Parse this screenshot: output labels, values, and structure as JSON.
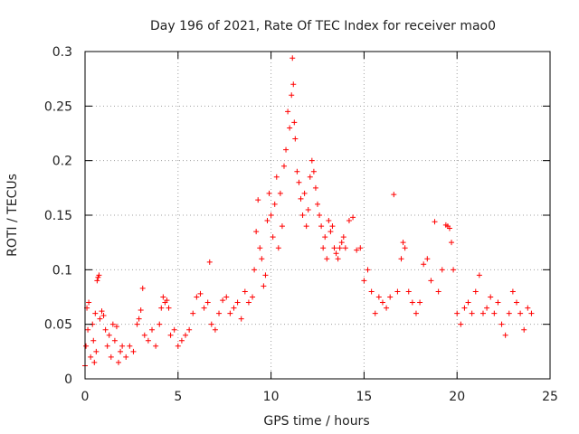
{
  "chart_data": {
    "type": "scatter",
    "title": "Day 196 of 2021, Rate Of TEC Index for receiver mao0",
    "xlabel": "GPS time / hours",
    "ylabel": "ROTI / TECUs",
    "xlim": [
      0,
      25
    ],
    "ylim": [
      0,
      0.3
    ],
    "x_ticks": [
      0,
      5,
      10,
      15,
      20,
      25
    ],
    "y_ticks": [
      0,
      0.05,
      0.1,
      0.15,
      0.2,
      0.25,
      0.3
    ],
    "x_tick_labels": [
      "0",
      "5",
      "10",
      "15",
      "20",
      "25"
    ],
    "y_tick_labels": [
      "0",
      "0.05",
      "0.1",
      "0.15",
      "0.2",
      "0.25",
      "0.3"
    ],
    "grid": true,
    "marker": "+",
    "marker_color": "#ff0000",
    "series": [
      {
        "name": "ROTI",
        "points": [
          [
            0.0,
            0.012
          ],
          [
            0.05,
            0.03
          ],
          [
            0.1,
            0.065
          ],
          [
            0.15,
            0.045
          ],
          [
            0.2,
            0.07
          ],
          [
            0.3,
            0.02
          ],
          [
            0.4,
            0.05
          ],
          [
            0.45,
            0.035
          ],
          [
            0.5,
            0.015
          ],
          [
            0.55,
            0.06
          ],
          [
            0.6,
            0.025
          ],
          [
            0.65,
            0.09
          ],
          [
            0.7,
            0.093
          ],
          [
            0.75,
            0.095
          ],
          [
            0.8,
            0.055
          ],
          [
            0.9,
            0.062
          ],
          [
            1.0,
            0.058
          ],
          [
            1.1,
            0.045
          ],
          [
            1.2,
            0.03
          ],
          [
            1.3,
            0.04
          ],
          [
            1.4,
            0.02
          ],
          [
            1.5,
            0.05
          ],
          [
            1.6,
            0.035
          ],
          [
            1.7,
            0.048
          ],
          [
            1.8,
            0.015
          ],
          [
            1.9,
            0.025
          ],
          [
            2.0,
            0.03
          ],
          [
            2.2,
            0.02
          ],
          [
            2.4,
            0.03
          ],
          [
            2.6,
            0.025
          ],
          [
            2.8,
            0.05
          ],
          [
            2.9,
            0.055
          ],
          [
            3.0,
            0.063
          ],
          [
            3.1,
            0.083
          ],
          [
            3.2,
            0.04
          ],
          [
            3.4,
            0.035
          ],
          [
            3.6,
            0.045
          ],
          [
            3.8,
            0.03
          ],
          [
            4.0,
            0.05
          ],
          [
            4.1,
            0.065
          ],
          [
            4.2,
            0.075
          ],
          [
            4.3,
            0.07
          ],
          [
            4.4,
            0.072
          ],
          [
            4.5,
            0.065
          ],
          [
            4.6,
            0.04
          ],
          [
            4.8,
            0.045
          ],
          [
            5.0,
            0.03
          ],
          [
            5.2,
            0.035
          ],
          [
            5.4,
            0.04
          ],
          [
            5.6,
            0.045
          ],
          [
            5.8,
            0.06
          ],
          [
            6.0,
            0.075
          ],
          [
            6.2,
            0.078
          ],
          [
            6.4,
            0.065
          ],
          [
            6.6,
            0.07
          ],
          [
            6.7,
            0.107
          ],
          [
            6.8,
            0.05
          ],
          [
            7.0,
            0.045
          ],
          [
            7.2,
            0.06
          ],
          [
            7.4,
            0.072
          ],
          [
            7.6,
            0.075
          ],
          [
            7.8,
            0.06
          ],
          [
            8.0,
            0.065
          ],
          [
            8.2,
            0.07
          ],
          [
            8.4,
            0.055
          ],
          [
            8.6,
            0.08
          ],
          [
            8.8,
            0.07
          ],
          [
            9.0,
            0.075
          ],
          [
            9.1,
            0.1
          ],
          [
            9.2,
            0.135
          ],
          [
            9.3,
            0.164
          ],
          [
            9.4,
            0.12
          ],
          [
            9.5,
            0.11
          ],
          [
            9.6,
            0.085
          ],
          [
            9.7,
            0.095
          ],
          [
            9.8,
            0.145
          ],
          [
            9.9,
            0.17
          ],
          [
            10.0,
            0.15
          ],
          [
            10.1,
            0.13
          ],
          [
            10.2,
            0.16
          ],
          [
            10.3,
            0.185
          ],
          [
            10.4,
            0.12
          ],
          [
            10.5,
            0.17
          ],
          [
            10.6,
            0.14
          ],
          [
            10.7,
            0.195
          ],
          [
            10.8,
            0.21
          ],
          [
            10.9,
            0.245
          ],
          [
            11.0,
            0.23
          ],
          [
            11.1,
            0.26
          ],
          [
            11.15,
            0.294
          ],
          [
            11.2,
            0.27
          ],
          [
            11.25,
            0.235
          ],
          [
            11.3,
            0.22
          ],
          [
            11.4,
            0.19
          ],
          [
            11.5,
            0.18
          ],
          [
            11.6,
            0.165
          ],
          [
            11.7,
            0.15
          ],
          [
            11.8,
            0.17
          ],
          [
            11.9,
            0.14
          ],
          [
            12.0,
            0.155
          ],
          [
            12.1,
            0.185
          ],
          [
            12.2,
            0.2
          ],
          [
            12.3,
            0.19
          ],
          [
            12.4,
            0.175
          ],
          [
            12.5,
            0.16
          ],
          [
            12.6,
            0.15
          ],
          [
            12.7,
            0.14
          ],
          [
            12.8,
            0.12
          ],
          [
            12.9,
            0.13
          ],
          [
            13.0,
            0.11
          ],
          [
            13.1,
            0.145
          ],
          [
            13.2,
            0.135
          ],
          [
            13.3,
            0.14
          ],
          [
            13.4,
            0.12
          ],
          [
            13.5,
            0.115
          ],
          [
            13.6,
            0.11
          ],
          [
            13.7,
            0.12
          ],
          [
            13.8,
            0.125
          ],
          [
            13.9,
            0.13
          ],
          [
            14.0,
            0.12
          ],
          [
            14.2,
            0.145
          ],
          [
            14.4,
            0.148
          ],
          [
            14.6,
            0.118
          ],
          [
            14.8,
            0.12
          ],
          [
            15.0,
            0.09
          ],
          [
            15.2,
            0.1
          ],
          [
            15.4,
            0.08
          ],
          [
            15.6,
            0.06
          ],
          [
            15.8,
            0.075
          ],
          [
            16.0,
            0.07
          ],
          [
            16.2,
            0.065
          ],
          [
            16.4,
            0.075
          ],
          [
            16.6,
            0.169
          ],
          [
            16.8,
            0.08
          ],
          [
            17.0,
            0.11
          ],
          [
            17.1,
            0.125
          ],
          [
            17.2,
            0.12
          ],
          [
            17.4,
            0.08
          ],
          [
            17.6,
            0.07
          ],
          [
            17.8,
            0.06
          ],
          [
            18.0,
            0.07
          ],
          [
            18.2,
            0.105
          ],
          [
            18.4,
            0.11
          ],
          [
            18.6,
            0.09
          ],
          [
            18.8,
            0.144
          ],
          [
            19.0,
            0.08
          ],
          [
            19.2,
            0.1
          ],
          [
            19.4,
            0.141
          ],
          [
            19.5,
            0.14
          ],
          [
            19.6,
            0.138
          ],
          [
            19.7,
            0.125
          ],
          [
            19.8,
            0.1
          ],
          [
            20.0,
            0.06
          ],
          [
            20.2,
            0.05
          ],
          [
            20.4,
            0.065
          ],
          [
            20.6,
            0.07
          ],
          [
            20.8,
            0.06
          ],
          [
            21.0,
            0.08
          ],
          [
            21.2,
            0.095
          ],
          [
            21.4,
            0.06
          ],
          [
            21.6,
            0.065
          ],
          [
            21.8,
            0.075
          ],
          [
            22.0,
            0.06
          ],
          [
            22.2,
            0.07
          ],
          [
            22.4,
            0.05
          ],
          [
            22.6,
            0.04
          ],
          [
            22.8,
            0.06
          ],
          [
            23.0,
            0.08
          ],
          [
            23.2,
            0.07
          ],
          [
            23.4,
            0.06
          ],
          [
            23.6,
            0.045
          ],
          [
            23.8,
            0.065
          ],
          [
            24.0,
            0.06
          ]
        ]
      }
    ]
  }
}
